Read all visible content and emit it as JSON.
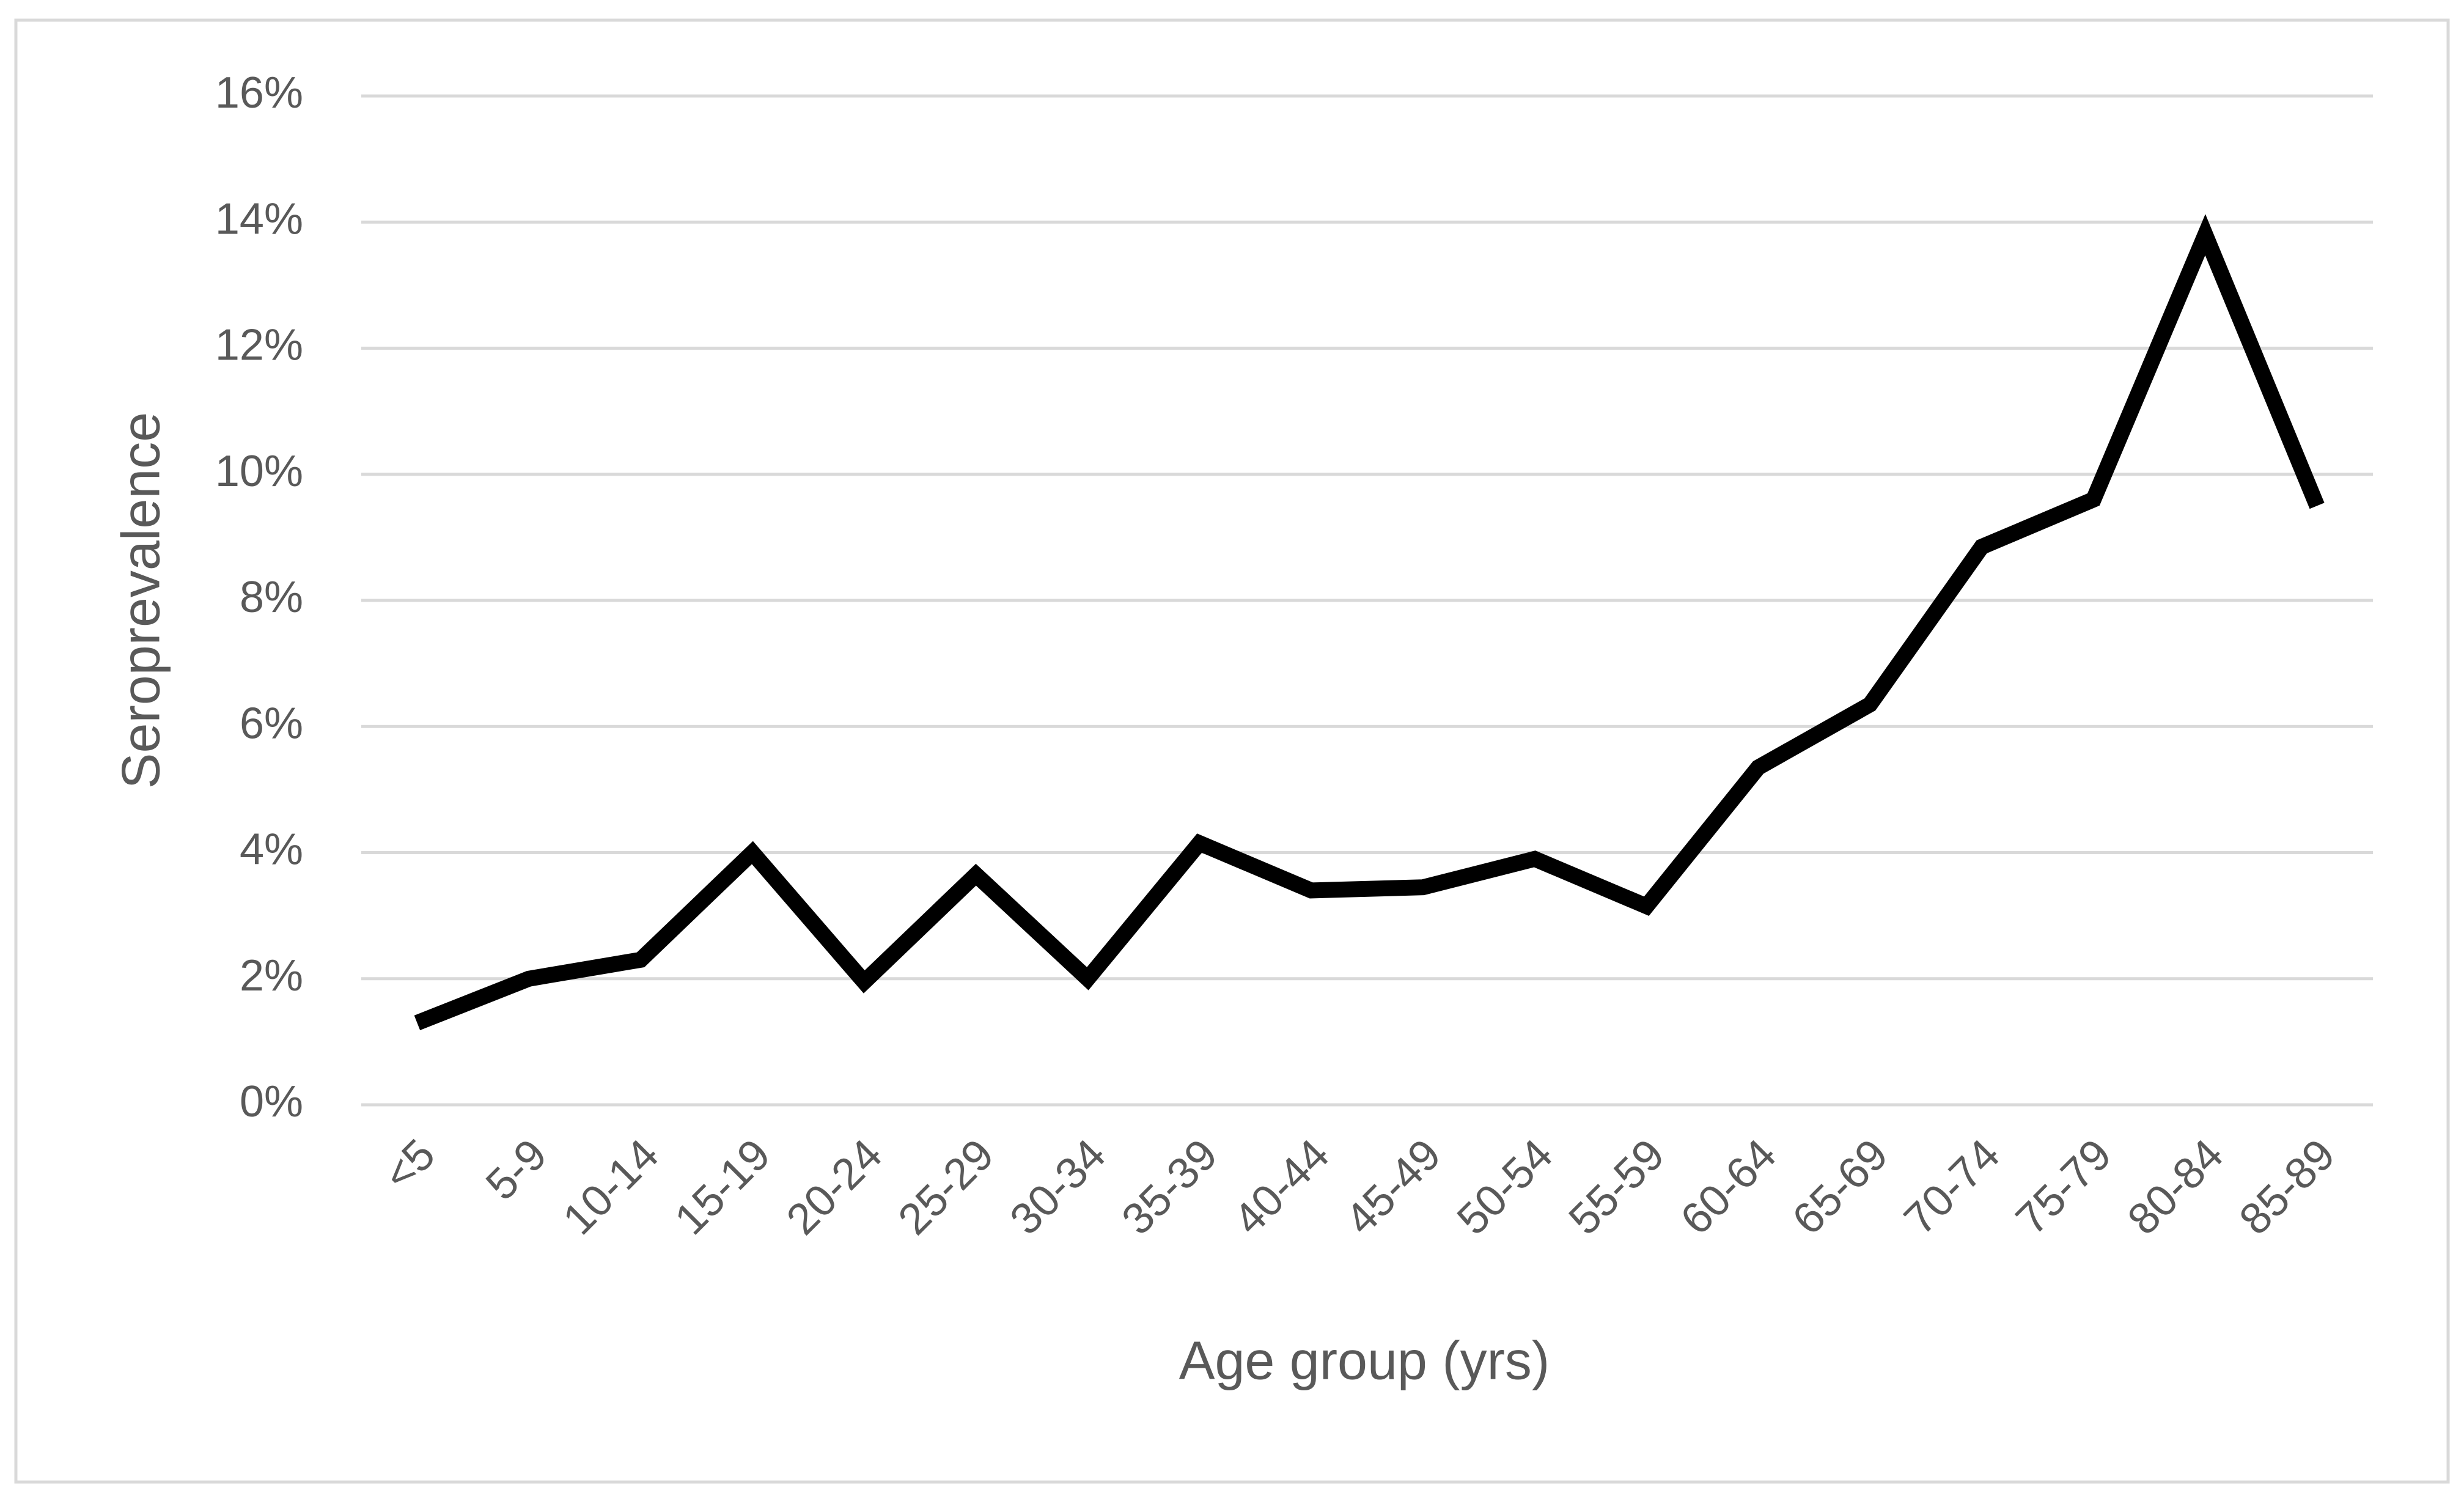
{
  "chart_data": {
    "type": "line",
    "x_label": "Age group (yrs)",
    "y_label": "Seroprevalence",
    "categories": [
      "<5",
      "5-9",
      "10-14",
      "15-19",
      "20-24",
      "25-29",
      "30-34",
      "35-39",
      "40-44",
      "45-49",
      "50-54",
      "55-59",
      "60-64",
      "65-69",
      "70-74",
      "75-79",
      "80-84",
      "85-89"
    ],
    "values": [
      1.3,
      2.0,
      2.3,
      4.0,
      1.95,
      3.65,
      2.0,
      4.15,
      3.4,
      3.45,
      3.9,
      3.15,
      5.35,
      6.35,
      8.85,
      9.6,
      13.8,
      9.5
    ],
    "color": "#000000",
    "ylim": [
      0,
      16
    ],
    "yticks": [
      {
        "value": 0,
        "label": "0%"
      },
      {
        "value": 2,
        "label": "2%"
      },
      {
        "value": 4,
        "label": "4%"
      },
      {
        "value": 6,
        "label": "6%"
      },
      {
        "value": 8,
        "label": "8%"
      },
      {
        "value": 10,
        "label": "10%"
      },
      {
        "value": 12,
        "label": "12%"
      },
      {
        "value": 14,
        "label": "14%"
      },
      {
        "value": 16,
        "label": "16%"
      }
    ],
    "grid": true
  }
}
